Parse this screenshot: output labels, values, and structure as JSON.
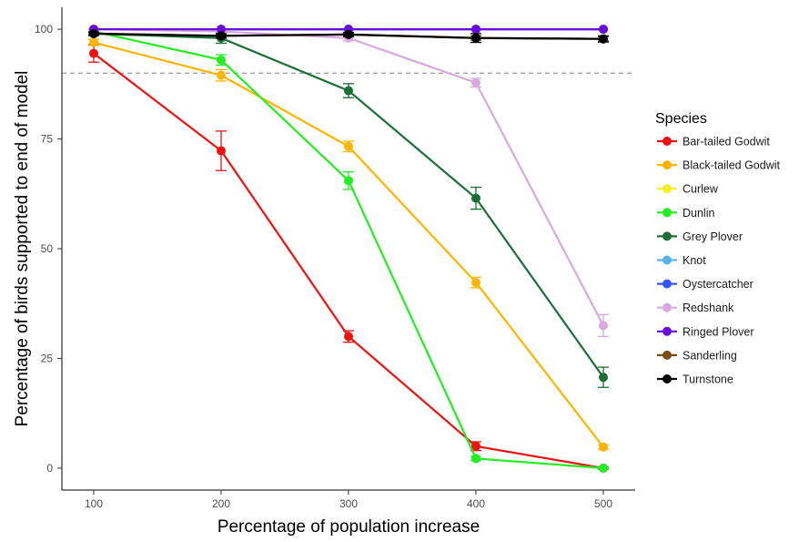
{
  "chart_data": {
    "type": "line",
    "title": "",
    "xlabel": "Percentage of population increase",
    "ylabel": "Percentage of birds supported to end of model",
    "x": [
      100,
      200,
      300,
      400,
      500
    ],
    "xlim": [
      75,
      525
    ],
    "ylim": [
      -5,
      105
    ],
    "yticks": [
      0,
      25,
      50,
      75,
      100
    ],
    "grid": false,
    "reference_line": {
      "y": 90,
      "style": "dashed",
      "color": "#808080"
    },
    "legend": {
      "title": "Species",
      "placement": "right"
    },
    "series": [
      {
        "name": "Bar-tailed Godwit",
        "color": "#ee1111",
        "values": [
          94.5,
          72.3,
          30.0,
          5.0,
          0.0
        ],
        "errors": [
          2.0,
          4.5,
          1.3,
          1.0,
          0.3
        ]
      },
      {
        "name": "Black-tailed Godwit",
        "color": "#ffb400",
        "values": [
          97.0,
          89.5,
          73.3,
          42.3,
          4.8
        ],
        "errors": [
          0.7,
          1.3,
          1.2,
          1.2,
          0.5
        ]
      },
      {
        "name": "Curlew",
        "color": "#f5ee22",
        "values": [
          100.0,
          100.0,
          100.0,
          100.0,
          100.0
        ],
        "errors": [
          0,
          0,
          0,
          0,
          0
        ]
      },
      {
        "name": "Dunlin",
        "color": "#22ee22",
        "values": [
          99.5,
          93.0,
          65.5,
          2.2,
          0.0
        ],
        "errors": [
          0.5,
          1.2,
          2.0,
          0.5,
          0.2
        ]
      },
      {
        "name": "Grey Plover",
        "color": "#1a6e36",
        "values": [
          99.0,
          98.0,
          86.0,
          61.5,
          20.7
        ],
        "errors": [
          0.5,
          1.2,
          1.6,
          2.5,
          2.3
        ]
      },
      {
        "name": "Knot",
        "color": "#56b4e9",
        "values": [
          100.0,
          100.0,
          100.0,
          100.0,
          100.0
        ],
        "errors": [
          0,
          0,
          0,
          0,
          0
        ]
      },
      {
        "name": "Oystercatcher",
        "color": "#3355ff",
        "values": [
          100.0,
          100.0,
          100.0,
          100.0,
          100.0
        ],
        "errors": [
          0,
          0,
          0,
          0,
          0
        ]
      },
      {
        "name": "Redshank",
        "color": "#d8a8e0",
        "values": [
          100.0,
          99.5,
          98.0,
          87.8,
          32.5
        ],
        "errors": [
          0.2,
          0.4,
          0.6,
          1.0,
          2.5
        ]
      },
      {
        "name": "Ringed Plover",
        "color": "#6a0dd8",
        "values": [
          100.0,
          100.0,
          100.0,
          100.0,
          100.0
        ],
        "errors": [
          0,
          0,
          0,
          0,
          0
        ]
      },
      {
        "name": "Sanderling",
        "color": "#7a4e10",
        "values": [
          99.0,
          98.5,
          98.8,
          98.0,
          97.8
        ],
        "errors": [
          0.2,
          0.3,
          0.3,
          0.5,
          0.5
        ]
      },
      {
        "name": "Turnstone",
        "color": "#000000",
        "values": [
          99.0,
          98.5,
          98.8,
          98.0,
          97.8
        ],
        "errors": [
          0.3,
          0.5,
          0.5,
          1.0,
          0.7
        ]
      }
    ]
  }
}
